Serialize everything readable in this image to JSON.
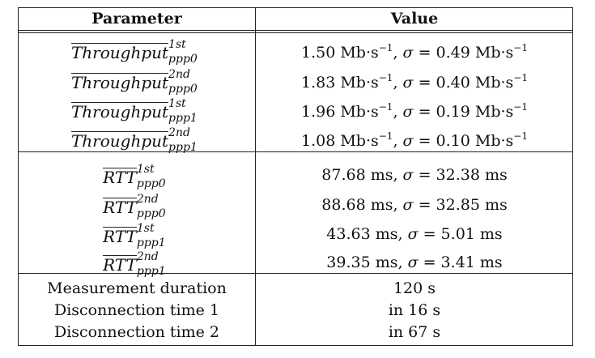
{
  "header": {
    "param": "Parameter",
    "value": "Value"
  },
  "throughput_rows": [
    {
      "base": "Throughput",
      "sup": "1st",
      "sub": "ppp0",
      "value": "1.50 Mb·s",
      "exp": "−1",
      "sigma_label": "σ",
      "sigma_val": " = 0.49 Mb·s",
      "sigma_exp": "−1"
    },
    {
      "base": "Throughput",
      "sup": "2nd",
      "sub": "ppp0",
      "value": "1.83 Mb·s",
      "exp": "−1",
      "sigma_label": "σ",
      "sigma_val": " = 0.40 Mb·s",
      "sigma_exp": "−1"
    },
    {
      "base": "Throughput",
      "sup": "1st",
      "sub": "ppp1",
      "value": "1.96 Mb·s",
      "exp": "−1",
      "sigma_label": "σ",
      "sigma_val": " = 0.19 Mb·s",
      "sigma_exp": "−1"
    },
    {
      "base": "Throughput",
      "sup": "2nd",
      "sub": "ppp1",
      "value": "1.08 Mb·s",
      "exp": "−1",
      "sigma_label": "σ",
      "sigma_val": " = 0.10 Mb·s",
      "sigma_exp": "−1"
    }
  ],
  "rtt_rows": [
    {
      "base": "RTT",
      "sup": "1st",
      "sub": "ppp0",
      "value": "87.68 ms, ",
      "sigma_label": "σ",
      "sigma_val": " = 32.38 ms"
    },
    {
      "base": "RTT",
      "sup": "2nd",
      "sub": "ppp0",
      "value": "88.68 ms, ",
      "sigma_label": "σ",
      "sigma_val": " = 32.85 ms"
    },
    {
      "base": "RTT",
      "sup": "1st",
      "sub": "ppp1",
      "value": "43.63 ms, ",
      "sigma_label": "σ",
      "sigma_val": " = 5.01 ms"
    },
    {
      "base": "RTT",
      "sup": "2nd",
      "sub": "ppp1",
      "value": "39.35 ms, ",
      "sigma_label": "σ",
      "sigma_val": " = 3.41 ms"
    }
  ],
  "misc_rows": [
    {
      "param": "Measurement duration",
      "value": "120 s"
    },
    {
      "param": "Disconnection time 1",
      "value": "in 16 s"
    },
    {
      "param": "Disconnection time 2",
      "value": "in 67 s"
    }
  ]
}
